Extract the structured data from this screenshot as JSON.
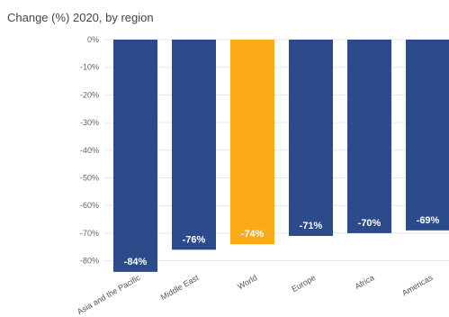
{
  "chart_data": {
    "type": "bar",
    "title": "Change (%) 2020, by region",
    "categories": [
      "Asia and the Pacific",
      "Middle East",
      "World",
      "Europe",
      "Africa",
      "Americas"
    ],
    "values": [
      -84,
      -76,
      -74,
      -71,
      -70,
      -69
    ],
    "data_labels": [
      "-84%",
      "-76%",
      "-74%",
      "-71%",
      "-70%",
      "-69%"
    ],
    "highlight_category": "World",
    "y_ticks": [
      "0%",
      "-10%",
      "-20%",
      "-30%",
      "-40%",
      "-50%",
      "-60%",
      "-70%",
      "-80%"
    ],
    "ylim": [
      -85,
      0
    ],
    "xlabel": "",
    "ylabel": "",
    "grid": true,
    "colors": {
      "bar": "#2c4b8a",
      "highlight": "#fbab18"
    }
  }
}
